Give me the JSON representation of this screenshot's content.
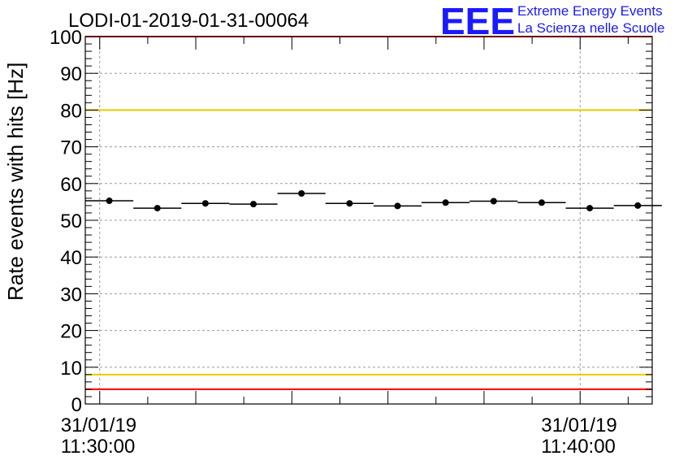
{
  "chart_data": {
    "type": "scatter",
    "title": "LODI-01-2019-01-31-00064",
    "xlabel": "",
    "ylabel": "Rate events with hits [Hz]",
    "ylim": [
      0,
      100
    ],
    "y_major_ticks": [
      0,
      10,
      20,
      30,
      40,
      50,
      60,
      70,
      80,
      90,
      100
    ],
    "x_range_min": [
      -0.3,
      11.5
    ],
    "x_tick_labels": [
      {
        "x": 0,
        "date": "31/01/19",
        "time": "11:30:00"
      },
      {
        "x": 10,
        "date": "31/01/19",
        "time": "11:40:00"
      }
    ],
    "grid": true,
    "series": [
      {
        "name": "rate",
        "bin_width_min": 1,
        "x": [
          0.2,
          1.2,
          2.2,
          3.2,
          4.2,
          5.2,
          6.2,
          7.2,
          8.2,
          9.2,
          10.2,
          11.2
        ],
        "y": [
          55.3,
          53.3,
          54.6,
          54.4,
          57.3,
          54.6,
          53.9,
          54.8,
          55.2,
          54.8,
          53.3,
          54.0
        ]
      }
    ],
    "reference_lines": [
      {
        "name": "upper-red-limit",
        "y": 100,
        "color": "#ff0000"
      },
      {
        "name": "upper-yellow-limit",
        "y": 80,
        "color": "#f0c800"
      },
      {
        "name": "lower-yellow-limit",
        "y": 8,
        "color": "#f0c800"
      },
      {
        "name": "lower-red-limit",
        "y": 4,
        "color": "#ff0000"
      }
    ]
  },
  "logo": {
    "text": "EEE",
    "line1": "Extreme Energy Events",
    "line2": "La Scienza nelle Scuole",
    "color": "#1a1aff"
  }
}
